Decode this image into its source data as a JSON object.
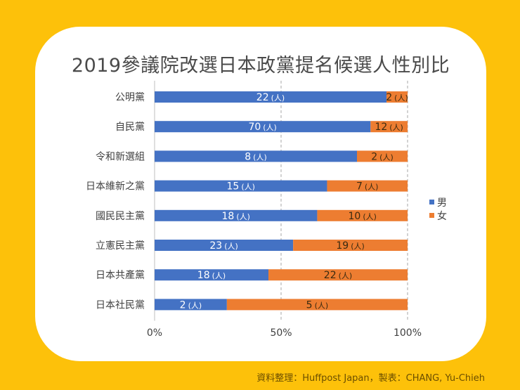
{
  "chart_data": {
    "type": "bar",
    "stacked": "percent",
    "orientation": "horizontal",
    "title": "2019參議院改選日本政黨提名候選人性別比",
    "categories": [
      "公明黨",
      "自民黨",
      "令和新選組",
      "日本維新之黨",
      "國民民主黨",
      "立憲民主黨",
      "日本共產黨",
      "日本社民黨"
    ],
    "series": [
      {
        "name": "男",
        "color": "#4472C4",
        "values": [
          22,
          70,
          8,
          15,
          18,
          23,
          18,
          2
        ]
      },
      {
        "name": "女",
        "color": "#ED7D31",
        "values": [
          2,
          12,
          2,
          7,
          10,
          19,
          22,
          5
        ]
      }
    ],
    "unit_label": "(人)",
    "x_ticks": [
      "0%",
      "50%",
      "100%"
    ],
    "xlim": [
      0,
      100
    ],
    "legend": "right",
    "grid": "dashed vertical at 50% and 100%"
  },
  "source": "資料整理：Huffpost Japan，製表：CHANG, Yu-Chieh"
}
